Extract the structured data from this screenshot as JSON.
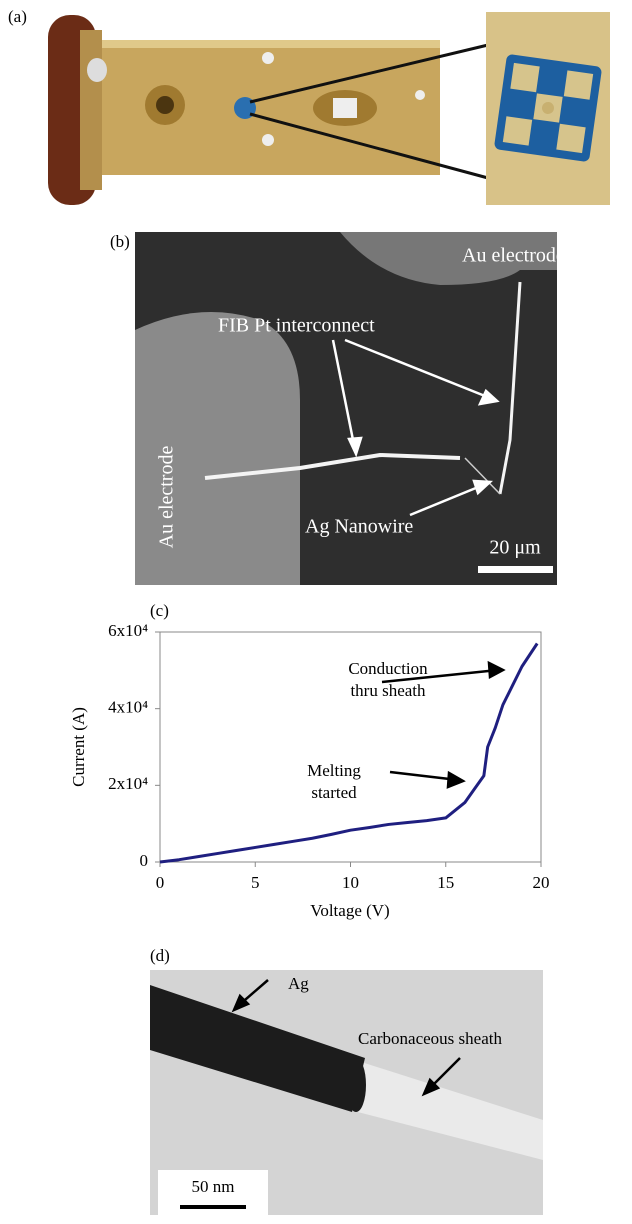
{
  "panels": {
    "a": {
      "label": "(a)"
    },
    "b": {
      "label": "(b)",
      "top_electrode": "Au electrode",
      "interconnect": "FIB Pt interconnect",
      "left_electrode": "Au electrode",
      "nanowire": "Ag  Nanowire",
      "scale": "20  μm"
    },
    "c": {
      "label": "(c)"
    },
    "d": {
      "label": "(d)",
      "ag": "Ag",
      "sheath": "Carbonaceous sheath",
      "scale": "50 nm"
    }
  },
  "chart_data": {
    "type": "line",
    "x_label": "Voltage (V)",
    "y_label": "Current (A)",
    "x": [
      0,
      1,
      2,
      3,
      4,
      5,
      6,
      7,
      8,
      9,
      10,
      11,
      12,
      13,
      14,
      15,
      16,
      16.5,
      17,
      17.2,
      17.6,
      18,
      18.5,
      19,
      19.4,
      19.8
    ],
    "values": [
      0,
      600,
      1400,
      2200,
      3000,
      3800,
      4600,
      5400,
      6200,
      7200,
      8300,
      9000,
      9800,
      10300,
      10800,
      11500,
      15500,
      19000,
      22500,
      30000,
      35000,
      41000,
      46000,
      51000,
      54000,
      57000
    ],
    "color": "#1f1f80",
    "xlim": [
      0,
      20
    ],
    "xticks": [
      0,
      5,
      10,
      15,
      20
    ],
    "ylim": [
      0,
      60000
    ],
    "yticks": [
      0,
      {
        "value": 20000,
        "label": "2x10⁴"
      },
      {
        "value": 40000,
        "label": "4x10⁴"
      },
      {
        "value": 60000,
        "label": "6x10⁴"
      }
    ],
    "annotations": [
      {
        "lines": [
          "Conduction",
          "thru sheath"
        ]
      },
      {
        "lines": [
          "Melting",
          "started"
        ]
      }
    ]
  }
}
